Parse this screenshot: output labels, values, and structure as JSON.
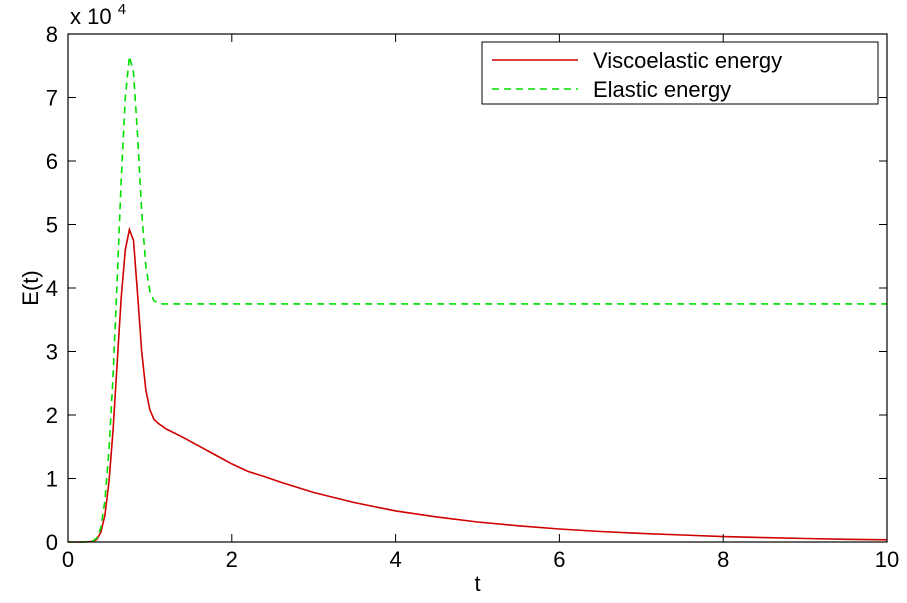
{
  "chart_data": {
    "type": "line",
    "title": "",
    "xlabel": "t",
    "ylabel": "E(t)",
    "xlim": [
      0,
      10
    ],
    "ylim": [
      0,
      80000
    ],
    "xticks": [
      0,
      2,
      4,
      6,
      8,
      10
    ],
    "xtick_labels": [
      "0",
      "2",
      "4",
      "6",
      "8",
      "10"
    ],
    "yticks": [
      0,
      10000,
      20000,
      30000,
      40000,
      50000,
      60000,
      70000,
      80000
    ],
    "ytick_labels": [
      "0",
      "1",
      "2",
      "3",
      "4",
      "5",
      "6",
      "7",
      "8"
    ],
    "y_multiplier_base": "x 10",
    "y_multiplier_exponent": "4",
    "grid": false,
    "legend_position": "top-right",
    "series": [
      {
        "name": "Viscoelastic energy",
        "color": "#d00000",
        "line_style": "solid",
        "x": [
          0,
          0.2,
          0.3,
          0.35,
          0.4,
          0.45,
          0.5,
          0.55,
          0.6,
          0.65,
          0.7,
          0.75,
          0.8,
          0.85,
          0.9,
          0.95,
          1.0,
          1.05,
          1.1,
          1.2,
          1.4,
          1.6,
          1.8,
          2.0,
          2.2,
          2.4,
          2.6,
          3.0,
          3.5,
          4.0,
          4.5,
          5.0,
          5.5,
          6.0,
          6.5,
          7.0,
          7.5,
          8.0,
          8.5,
          9.0,
          9.5,
          10.0
        ],
        "y": [
          0,
          0,
          100,
          400,
          1500,
          4200,
          9500,
          17500,
          28000,
          38500,
          46000,
          49200,
          47500,
          39000,
          30000,
          24000,
          20800,
          19300,
          18700,
          17800,
          16500,
          15100,
          13700,
          12300,
          11100,
          10300,
          9400,
          7800,
          6200,
          4900,
          3950,
          3150,
          2550,
          2050,
          1650,
          1350,
          1100,
          850,
          700,
          550,
          430,
          350
        ]
      },
      {
        "name": "Elastic energy",
        "color": "#00e000",
        "line_style": "dashed",
        "x": [
          0,
          0.2,
          0.3,
          0.35,
          0.4,
          0.45,
          0.5,
          0.55,
          0.6,
          0.65,
          0.7,
          0.75,
          0.8,
          0.85,
          0.9,
          0.95,
          1.0,
          1.05,
          1.1,
          1.15,
          1.2,
          1.3,
          2.0,
          4.0,
          6.0,
          8.0,
          10.0
        ],
        "y": [
          0,
          0,
          150,
          600,
          2200,
          6500,
          14500,
          26000,
          41000,
          57000,
          70000,
          76500,
          74000,
          64000,
          52000,
          43500,
          39500,
          38000,
          37600,
          37500,
          37500,
          37500,
          37500,
          37500,
          37500,
          37500,
          37500
        ]
      }
    ]
  }
}
